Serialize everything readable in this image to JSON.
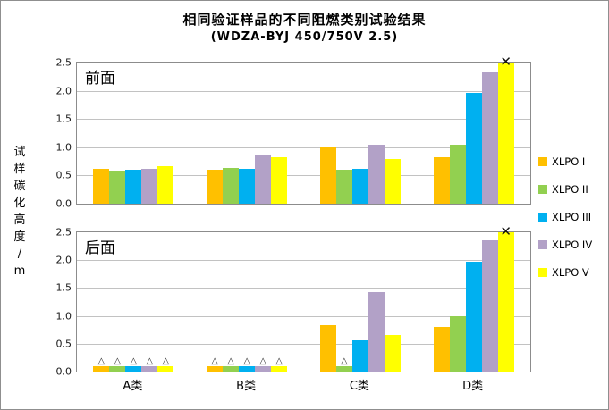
{
  "title": "相同验证样品的不同阻燃类别试验结果",
  "subtitle": "(WDZA-BYJ 450/750V 2.5)",
  "y_axis_label": "试样碳化高度/m",
  "markers": {
    "clipped_symbol": "✕",
    "triangle_symbol": "△"
  },
  "colors": {
    "xlpo1": "#FFC000",
    "xlpo2": "#92D050",
    "xlpo3": "#00B0F0",
    "xlpo4": "#B2A1C7",
    "xlpo5": "#FFFF00",
    "gridline": "#C2C2C2",
    "panel_border": "#8C8C8C"
  },
  "legend": [
    {
      "label": "XLPO I",
      "color": "#FFC000"
    },
    {
      "label": "XLPO II",
      "color": "#92D050"
    },
    {
      "label": "XLPO III",
      "color": "#00B0F0"
    },
    {
      "label": "XLPO IV",
      "color": "#B2A1C7"
    },
    {
      "label": "XLPO V",
      "color": "#FFFF00"
    }
  ],
  "chart_data": [
    {
      "type": "bar",
      "panel_label": "前面",
      "categories": [
        "A类",
        "B类",
        "C类",
        "D类"
      ],
      "series": [
        {
          "name": "XLPO I",
          "color": "#FFC000",
          "values": [
            0.62,
            0.6,
            1.0,
            0.83
          ]
        },
        {
          "name": "XLPO II",
          "color": "#92D050",
          "values": [
            0.58,
            0.64,
            0.6,
            1.04
          ]
        },
        {
          "name": "XLPO III",
          "color": "#00B0F0",
          "values": [
            0.6,
            0.61,
            0.61,
            1.96
          ]
        },
        {
          "name": "XLPO IV",
          "color": "#B2A1C7",
          "values": [
            0.62,
            0.87,
            1.04,
            2.33
          ]
        },
        {
          "name": "XLPO V",
          "color": "#FFFF00",
          "values": [
            0.66,
            0.83,
            0.79,
            2.5
          ]
        }
      ],
      "ylim": [
        0,
        2.5
      ],
      "yticks": [
        0.0,
        0.5,
        1.0,
        1.5,
        2.0,
        2.5
      ],
      "grid": true,
      "clipped_markers": [
        {
          "category": "D类",
          "series": "XLPO V"
        }
      ],
      "triangle_markers": []
    },
    {
      "type": "bar",
      "panel_label": "后面",
      "categories": [
        "A类",
        "B类",
        "C类",
        "D类"
      ],
      "series": [
        {
          "name": "XLPO I",
          "color": "#FFC000",
          "values": [
            0.1,
            0.1,
            0.84,
            0.8
          ]
        },
        {
          "name": "XLPO II",
          "color": "#92D050",
          "values": [
            0.1,
            0.1,
            0.1,
            1.0
          ]
        },
        {
          "name": "XLPO III",
          "color": "#00B0F0",
          "values": [
            0.1,
            0.1,
            0.56,
            1.97
          ]
        },
        {
          "name": "XLPO IV",
          "color": "#B2A1C7",
          "values": [
            0.1,
            0.1,
            1.43,
            2.35
          ]
        },
        {
          "name": "XLPO V",
          "color": "#FFFF00",
          "values": [
            0.1,
            0.1,
            0.65,
            2.5
          ]
        }
      ],
      "ylim": [
        0,
        2.5
      ],
      "yticks": [
        0.0,
        0.5,
        1.0,
        1.5,
        2.0,
        2.5
      ],
      "grid": true,
      "clipped_markers": [
        {
          "category": "D类",
          "series": "XLPO V"
        }
      ],
      "triangle_markers": [
        {
          "category": "A类",
          "series": "XLPO I"
        },
        {
          "category": "A类",
          "series": "XLPO II"
        },
        {
          "category": "A类",
          "series": "XLPO III"
        },
        {
          "category": "A类",
          "series": "XLPO IV"
        },
        {
          "category": "A类",
          "series": "XLPO V"
        },
        {
          "category": "B类",
          "series": "XLPO I"
        },
        {
          "category": "B类",
          "series": "XLPO II"
        },
        {
          "category": "B类",
          "series": "XLPO III"
        },
        {
          "category": "B类",
          "series": "XLPO IV"
        },
        {
          "category": "B类",
          "series": "XLPO V"
        },
        {
          "category": "C类",
          "series": "XLPO II"
        }
      ]
    }
  ]
}
